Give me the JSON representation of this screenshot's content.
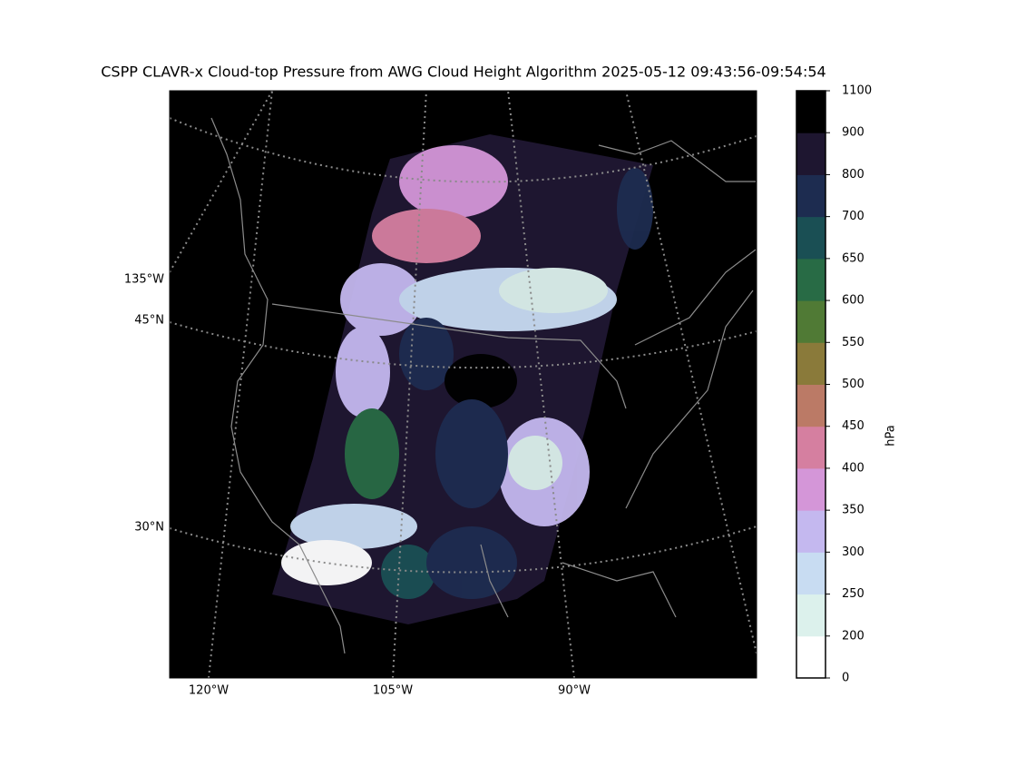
{
  "title": "CSPP CLAVR-x Cloud-top Pressure from AWG Cloud Height Algorithm 2025-05-12 09:43:56-09:54:54",
  "map": {
    "bottom_labels": [
      "120°W",
      "105°W",
      "90°W"
    ],
    "left_labels": [
      "135°W",
      "45°N",
      "30°N"
    ]
  },
  "colorbar": {
    "label": "hPa",
    "ticks": [
      0,
      200,
      250,
      300,
      350,
      400,
      450,
      500,
      550,
      600,
      650,
      700,
      800,
      900,
      1100
    ],
    "colors": [
      "#ffffff",
      "#dcf1ec",
      "#c8dcf2",
      "#c4b8ef",
      "#d496d8",
      "#d57fa0",
      "#bb7a66",
      "#8a7a3a",
      "#507a35",
      "#286b45",
      "#1a4f54",
      "#1d2c50",
      "#1e1630",
      "#000000"
    ]
  }
}
